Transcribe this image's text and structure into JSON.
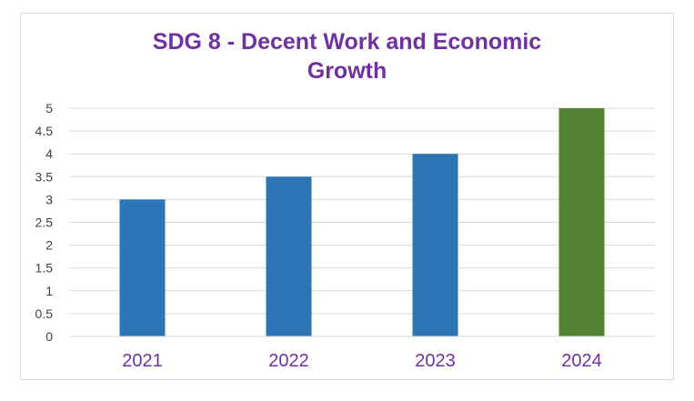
{
  "chart_data": {
    "type": "bar",
    "title_lines": [
      "SDG 8 - Decent Work and Economic",
      "Growth"
    ],
    "categories": [
      "2021",
      "2022",
      "2023",
      "2024"
    ],
    "values": [
      3,
      3.5,
      4,
      5
    ],
    "bar_colors": [
      "#2e75b6",
      "#2e75b6",
      "#2e75b6",
      "#548235"
    ],
    "title_color": "#7030a0",
    "xtick_color": "#7030a0",
    "ylim": [
      0,
      5
    ],
    "ytick_step": 0.5,
    "ytick_labels": [
      "0",
      "0.5",
      "1",
      "1.5",
      "2",
      "2.5",
      "3",
      "3.5",
      "4",
      "4.5",
      "5"
    ],
    "grid": true,
    "legend": "none"
  }
}
